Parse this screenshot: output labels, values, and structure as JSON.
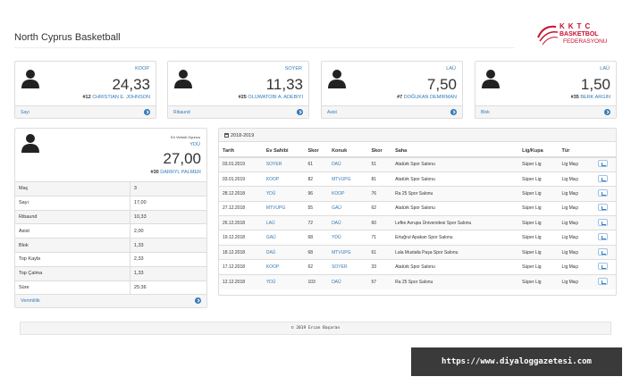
{
  "header": {
    "title": "North Cyprus Basketball"
  },
  "logo": {
    "line1": "KKTC",
    "line2": "BASKETBOL",
    "line3": "FEDERASYONU"
  },
  "stat_cards": [
    {
      "team": "KOOP",
      "value": "24,33",
      "number": "#12",
      "player": "CHRISTIAN E. JOHNSON",
      "label": "Sayı"
    },
    {
      "team": "SOYER",
      "value": "11,33",
      "number": "#25",
      "player": "OLUWATOBI A. ADEBIYI",
      "label": "Ribaund"
    },
    {
      "team": "LAÜ",
      "value": "7,50",
      "number": "#7",
      "player": "DOĞUKAN DEMIRMAN",
      "label": "Asist"
    },
    {
      "team": "LAÜ",
      "value": "1,50",
      "number": "#35",
      "player": "BERK ARGIN",
      "label": "Blok"
    }
  ],
  "efficient_player": {
    "label": "En Verimli Oyuncu",
    "team": "YDÜ",
    "value": "27,00",
    "number": "#30",
    "player": "DARRYL PALMER",
    "footer_label": "Verimlilik",
    "stats": [
      {
        "name": "Maç",
        "value": "3"
      },
      {
        "name": "Sayı",
        "value": "17,00"
      },
      {
        "name": "Ribaund",
        "value": "10,33"
      },
      {
        "name": "Asist",
        "value": "2,00"
      },
      {
        "name": "Blok",
        "value": "1,33"
      },
      {
        "name": "Top Kaybı",
        "value": "2,33"
      },
      {
        "name": "Top Çalma",
        "value": "1,33"
      },
      {
        "name": "Süre",
        "value": "25:36"
      }
    ]
  },
  "games": {
    "season": "2018-2019",
    "columns": [
      "Tarih",
      "Ev Sahibi",
      "Skor",
      "Konuk",
      "Skor",
      "Saha",
      "Lig/Kupa",
      "Tür"
    ],
    "rows": [
      [
        "03.01.2019",
        "SOYER",
        "61",
        "DAÜ",
        "51",
        "Atatürk Spor Salonu",
        "Süper Lig",
        "Lig Maçı"
      ],
      [
        "03.01.2019",
        "KOOP",
        "82",
        "MTVUPG",
        "81",
        "Atatürk Spor Salonu",
        "Süper Lig",
        "Lig Maçı"
      ],
      [
        "28.12.2018",
        "YDÜ",
        "96",
        "KOOP",
        "76",
        "Ra 25 Spor Salonu",
        "Süper Lig",
        "Lig Maçı"
      ],
      [
        "27.12.2018",
        "MTVUPG",
        "55",
        "GAÜ",
        "62",
        "Atatürk Spor Salonu",
        "Süper Lig",
        "Lig Maçı"
      ],
      [
        "26.12.2018",
        "LAÜ",
        "72",
        "DAÜ",
        "60",
        "Lefke Avrupa Üniversitesi Spor Salonu",
        "Süper Lig",
        "Lig Maçı"
      ],
      [
        "19.12.2018",
        "GAÜ",
        "68",
        "YDÜ",
        "71",
        "Ertuğrul Apakan Spor Salonu",
        "Süper Lig",
        "Lig Maçı"
      ],
      [
        "18.12.2018",
        "DAÜ",
        "68",
        "MTVUPG",
        "61",
        "Lala Mustafa Paşa Spor Salonu",
        "Süper Lig",
        "Lig Maçı"
      ],
      [
        "17.12.2018",
        "KOOP",
        "62",
        "SOYER",
        "33",
        "Atatürk Spor Salonu",
        "Süper Lig",
        "Lig Maçı"
      ],
      [
        "12.12.2018",
        "YDÜ",
        "103",
        "DAÜ",
        "57",
        "Ra 25 Spor Salonu",
        "Süper Lig",
        "Lig Maçı"
      ]
    ]
  },
  "footer": {
    "text": "© 2019 Ercan Başaran"
  },
  "watermark": {
    "text": "https://www.diyaloggazetesi.com"
  },
  "icons": {
    "user": "user-silhouette-icon",
    "arrow": "arrow-circle-right-icon",
    "calendar": "calendar-icon",
    "chart": "bar-chart-icon"
  },
  "colors": {
    "link": "#337ab7",
    "brand": "#c8102e"
  }
}
